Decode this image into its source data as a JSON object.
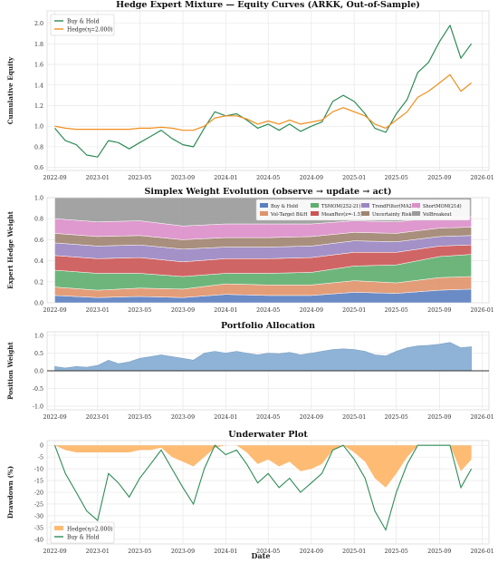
{
  "figure": {
    "xlabel": "Date"
  },
  "colors": {
    "buy_hold": "#2e8b57",
    "hedge": "#f28e1c",
    "area_blue": "#8fb3d6",
    "underwater_fill": "#fdbb74",
    "grid": "#e4e4e4",
    "weights": [
      "#5b7fc0",
      "#e0936a",
      "#5fae6e",
      "#cc5555",
      "#9b86c2",
      "#a08370",
      "#dc8fc9",
      "#9a9a9a"
    ]
  },
  "chart_data": [
    {
      "type": "line",
      "title": "Hedge Expert Mixture — Equity Curves (ARKK, Out-of-Sample)",
      "ylabel": "Cumulative Equity",
      "xlim": [
        "2022-08-10",
        "2026-01-20"
      ],
      "ylim": [
        0.57,
        2.12
      ],
      "yticks": [
        0.6,
        0.8,
        1.0,
        1.2,
        1.4,
        1.6,
        1.8,
        2.0
      ],
      "xticks": [
        "2022-09",
        "2023-01",
        "2023-05",
        "2023-09",
        "2024-01",
        "2024-05",
        "2024-09",
        "2025-01",
        "2025-05",
        "2025-09",
        "2026-01"
      ],
      "legend": "top-left",
      "series": [
        {
          "name": "Buy & Hold",
          "x": [
            "2022-09-01",
            "2022-10-01",
            "2022-11-01",
            "2022-12-01",
            "2023-01-01",
            "2023-02-01",
            "2023-03-01",
            "2023-04-01",
            "2023-05-01",
            "2023-06-01",
            "2023-07-01",
            "2023-08-01",
            "2023-09-01",
            "2023-10-01",
            "2023-11-01",
            "2023-12-01",
            "2024-01-01",
            "2024-02-01",
            "2024-03-01",
            "2024-04-01",
            "2024-05-01",
            "2024-06-01",
            "2024-07-01",
            "2024-08-01",
            "2024-09-01",
            "2024-10-01",
            "2024-11-01",
            "2024-12-01",
            "2025-01-01",
            "2025-02-01",
            "2025-03-01",
            "2025-04-01",
            "2025-05-01",
            "2025-06-01",
            "2025-07-01",
            "2025-08-01",
            "2025-09-01",
            "2025-10-01",
            "2025-11-01",
            "2025-12-01"
          ],
          "values": [
            0.98,
            0.86,
            0.82,
            0.72,
            0.7,
            0.86,
            0.84,
            0.78,
            0.84,
            0.9,
            0.96,
            0.88,
            0.82,
            0.8,
            0.98,
            1.14,
            1.1,
            1.12,
            1.06,
            0.98,
            1.02,
            0.96,
            1.02,
            0.95,
            1.0,
            1.04,
            1.24,
            1.3,
            1.24,
            1.12,
            0.98,
            0.94,
            1.12,
            1.26,
            1.52,
            1.62,
            1.82,
            1.98,
            1.66,
            1.8
          ]
        },
        {
          "name": "Hedge(η=2.000)",
          "x": [
            "2022-09-01",
            "2022-10-01",
            "2022-11-01",
            "2022-12-01",
            "2023-01-01",
            "2023-02-01",
            "2023-03-01",
            "2023-04-01",
            "2023-05-01",
            "2023-06-01",
            "2023-07-01",
            "2023-08-01",
            "2023-09-01",
            "2023-10-01",
            "2023-11-01",
            "2023-12-01",
            "2024-01-01",
            "2024-02-01",
            "2024-03-01",
            "2024-04-01",
            "2024-05-01",
            "2024-06-01",
            "2024-07-01",
            "2024-08-01",
            "2024-09-01",
            "2024-10-01",
            "2024-11-01",
            "2024-12-01",
            "2025-01-01",
            "2025-02-01",
            "2025-03-01",
            "2025-04-01",
            "2025-05-01",
            "2025-06-01",
            "2025-07-01",
            "2025-08-01",
            "2025-09-01",
            "2025-10-01",
            "2025-11-01",
            "2025-12-01"
          ],
          "values": [
            1.0,
            0.98,
            0.97,
            0.97,
            0.97,
            0.97,
            0.97,
            0.97,
            0.98,
            0.98,
            0.99,
            0.98,
            0.96,
            0.96,
            1.0,
            1.08,
            1.1,
            1.1,
            1.07,
            1.02,
            1.05,
            1.02,
            1.06,
            1.02,
            1.04,
            1.06,
            1.14,
            1.18,
            1.14,
            1.1,
            1.02,
            0.98,
            1.06,
            1.14,
            1.28,
            1.34,
            1.42,
            1.5,
            1.34,
            1.42
          ]
        }
      ]
    },
    {
      "type": "area",
      "stacked": true,
      "title": "Simplex Weight Evolution (observe → update → act)",
      "ylabel": "Expert Hedge Weight",
      "ylim": [
        0,
        1.0
      ],
      "yticks": [
        0.0,
        0.2,
        0.4,
        0.6,
        0.8,
        1.0
      ],
      "legend": "top-right",
      "x": [
        "2022-09-01",
        "2023-01-01",
        "2023-05-01",
        "2023-09-01",
        "2024-01-01",
        "2024-05-01",
        "2024-09-01",
        "2025-01-01",
        "2025-05-01",
        "2025-09-01",
        "2025-12-01"
      ],
      "series": [
        {
          "name": "Buy & Hold",
          "values": [
            0.07,
            0.05,
            0.06,
            0.05,
            0.08,
            0.07,
            0.07,
            0.1,
            0.09,
            0.12,
            0.13
          ]
        },
        {
          "name": "Vol-Target B&H",
          "values": [
            0.08,
            0.07,
            0.08,
            0.08,
            0.1,
            0.1,
            0.1,
            0.11,
            0.1,
            0.12,
            0.12
          ]
        },
        {
          "name": "TSMOM(252-21)",
          "values": [
            0.16,
            0.16,
            0.14,
            0.12,
            0.1,
            0.11,
            0.12,
            0.14,
            0.17,
            0.2,
            0.21
          ]
        },
        {
          "name": "MeanRev(z=-1.5)",
          "values": [
            0.14,
            0.14,
            0.15,
            0.14,
            0.14,
            0.14,
            0.14,
            0.13,
            0.12,
            0.1,
            0.09
          ]
        },
        {
          "name": "TrendFilter(MA200)",
          "values": [
            0.12,
            0.12,
            0.12,
            0.12,
            0.11,
            0.11,
            0.11,
            0.11,
            0.1,
            0.09,
            0.09
          ]
        },
        {
          "name": "Uncertainty Risk-Off",
          "values": [
            0.09,
            0.09,
            0.09,
            0.09,
            0.09,
            0.09,
            0.09,
            0.08,
            0.08,
            0.08,
            0.08
          ]
        },
        {
          "name": "ShortMOM(21d)",
          "values": [
            0.14,
            0.14,
            0.14,
            0.13,
            0.13,
            0.13,
            0.12,
            0.11,
            0.11,
            0.1,
            0.1
          ]
        },
        {
          "name": "VolBreakout",
          "values": [
            0.2,
            0.23,
            0.22,
            0.27,
            0.25,
            0.25,
            0.25,
            0.22,
            0.23,
            0.19,
            0.18
          ]
        }
      ]
    },
    {
      "type": "area",
      "title": "Portfolio Allocation",
      "ylabel": "Position Weight",
      "ylim": [
        -1.1,
        1.1
      ],
      "yticks": [
        -1.0,
        -0.5,
        0.0,
        0.5,
        1.0
      ],
      "x": [
        "2022-09-01",
        "2022-10-01",
        "2022-11-01",
        "2022-12-01",
        "2023-01-01",
        "2023-02-01",
        "2023-03-01",
        "2023-04-01",
        "2023-05-01",
        "2023-06-01",
        "2023-07-01",
        "2023-08-01",
        "2023-09-01",
        "2023-10-01",
        "2023-11-01",
        "2023-12-01",
        "2024-01-01",
        "2024-02-01",
        "2024-03-01",
        "2024-04-01",
        "2024-05-01",
        "2024-06-01",
        "2024-07-01",
        "2024-08-01",
        "2024-09-01",
        "2024-10-01",
        "2024-11-01",
        "2024-12-01",
        "2025-01-01",
        "2025-02-01",
        "2025-03-01",
        "2025-04-01",
        "2025-05-01",
        "2025-06-01",
        "2025-07-01",
        "2025-08-01",
        "2025-09-01",
        "2025-10-01",
        "2025-11-01",
        "2025-12-01"
      ],
      "values": [
        0.12,
        0.08,
        0.12,
        0.1,
        0.15,
        0.3,
        0.2,
        0.25,
        0.35,
        0.4,
        0.45,
        0.4,
        0.35,
        0.3,
        0.5,
        0.55,
        0.5,
        0.55,
        0.5,
        0.45,
        0.5,
        0.48,
        0.52,
        0.45,
        0.5,
        0.55,
        0.6,
        0.62,
        0.6,
        0.55,
        0.45,
        0.42,
        0.55,
        0.65,
        0.7,
        0.72,
        0.75,
        0.8,
        0.65,
        0.68
      ]
    },
    {
      "type": "area",
      "title": "Underwater Plot",
      "ylabel": "Drawdown (%)",
      "ylim": [
        -42,
        2
      ],
      "yticks": [
        0,
        -5,
        -10,
        -15,
        -20,
        -25,
        -30,
        -35,
        -40
      ],
      "legend": "bottom-left",
      "series": [
        {
          "name": "Hedge(η=2.000)",
          "kind": "fill",
          "x": [
            "2022-09-01",
            "2022-10-01",
            "2022-11-01",
            "2022-12-01",
            "2023-01-01",
            "2023-02-01",
            "2023-03-01",
            "2023-04-01",
            "2023-05-01",
            "2023-06-01",
            "2023-07-01",
            "2023-08-01",
            "2023-09-01",
            "2023-10-01",
            "2023-11-01",
            "2023-12-01",
            "2024-01-01",
            "2024-02-01",
            "2024-03-01",
            "2024-04-01",
            "2024-05-01",
            "2024-06-01",
            "2024-07-01",
            "2024-08-01",
            "2024-09-01",
            "2024-10-01",
            "2024-11-01",
            "2024-12-01",
            "2025-01-01",
            "2025-02-01",
            "2025-03-01",
            "2025-04-01",
            "2025-05-01",
            "2025-06-01",
            "2025-07-01",
            "2025-08-01",
            "2025-09-01",
            "2025-10-01",
            "2025-11-01",
            "2025-12-01"
          ],
          "values": [
            0,
            -2,
            -3,
            -3,
            -3,
            -3,
            -3,
            -3,
            -2,
            -2,
            -1,
            -5,
            -7,
            -9,
            -5,
            -1,
            0,
            0,
            -3,
            -8,
            -6,
            -9,
            -7,
            -11,
            -10,
            -8,
            -2,
            0,
            -3,
            -7,
            -14,
            -18,
            -12,
            -5,
            0,
            0,
            0,
            0,
            -11,
            -6
          ]
        },
        {
          "name": "Buy & Hold",
          "kind": "line",
          "x": [
            "2022-09-01",
            "2022-10-01",
            "2022-11-01",
            "2022-12-01",
            "2023-01-01",
            "2023-02-01",
            "2023-03-01",
            "2023-04-01",
            "2023-05-01",
            "2023-06-01",
            "2023-07-01",
            "2023-08-01",
            "2023-09-01",
            "2023-10-01",
            "2023-11-01",
            "2023-12-01",
            "2024-01-01",
            "2024-02-01",
            "2024-03-01",
            "2024-04-01",
            "2024-05-01",
            "2024-06-01",
            "2024-07-01",
            "2024-08-01",
            "2024-09-01",
            "2024-10-01",
            "2024-11-01",
            "2024-12-01",
            "2025-01-01",
            "2025-02-01",
            "2025-03-01",
            "2025-04-01",
            "2025-05-01",
            "2025-06-01",
            "2025-07-01",
            "2025-08-01",
            "2025-09-01",
            "2025-10-01",
            "2025-11-01",
            "2025-12-01"
          ],
          "values": [
            0,
            -12,
            -20,
            -28,
            -32,
            -12,
            -16,
            -22,
            -14,
            -8,
            -2,
            -10,
            -18,
            -25,
            -10,
            0,
            -4,
            -2,
            -8,
            -16,
            -12,
            -18,
            -14,
            -20,
            -16,
            -12,
            -2,
            0,
            -6,
            -14,
            -28,
            -36,
            -20,
            -8,
            0,
            0,
            0,
            0,
            -18,
            -10
          ]
        }
      ]
    }
  ]
}
